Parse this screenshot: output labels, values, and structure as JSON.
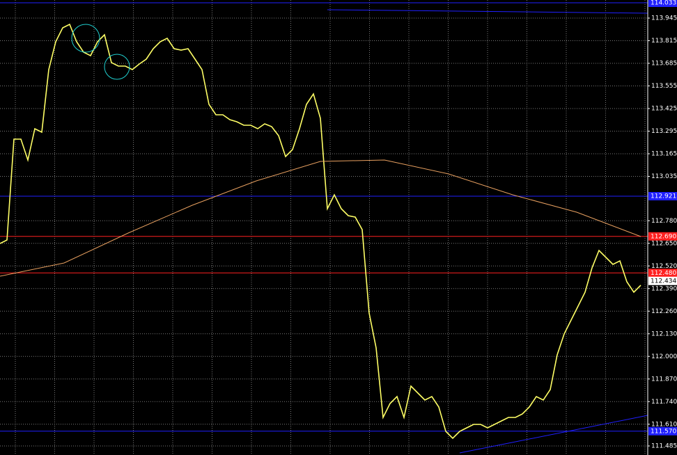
{
  "chart_data": {
    "type": "line",
    "series": [
      {
        "name": "Price",
        "color": "#ffff66",
        "values": [
          112.649,
          112.669,
          113.249,
          113.249,
          113.129,
          113.309,
          113.289,
          113.649,
          113.809,
          113.889,
          113.909,
          113.809,
          113.749,
          113.729,
          113.809,
          113.849,
          113.689,
          113.669,
          113.669,
          113.649,
          113.681,
          113.709,
          113.769,
          113.809,
          113.829,
          113.769,
          113.761,
          113.769,
          113.709,
          113.649,
          113.449,
          113.389,
          113.389,
          113.361,
          113.349,
          113.329,
          113.329,
          113.309,
          113.337,
          113.321,
          113.269,
          113.149,
          113.189,
          113.309,
          113.449,
          113.509,
          113.369,
          112.849,
          112.929,
          112.849,
          112.809,
          112.801,
          112.729,
          112.249,
          112.049,
          111.649,
          111.729,
          111.769,
          111.649,
          111.829,
          111.789,
          111.749,
          111.769,
          111.709,
          111.569,
          111.529,
          111.569,
          111.589,
          111.609,
          111.609,
          111.589,
          111.609,
          111.629,
          111.649,
          111.649,
          111.669,
          111.709,
          111.769,
          111.749,
          111.809,
          112.009,
          112.129,
          112.209,
          112.289,
          112.369,
          112.509,
          112.609,
          112.569,
          112.529,
          112.549,
          112.429,
          112.369,
          112.409
        ]
      },
      {
        "name": "MA",
        "color": "#e8a060",
        "values": [
          112.461,
          112.537,
          112.709,
          112.869,
          113.009,
          113.121,
          113.129,
          113.049,
          112.929,
          112.829,
          112.689
        ]
      }
    ],
    "levels": [
      {
        "value": 114.033,
        "label": "114.033",
        "color": "#2020ff"
      },
      {
        "value": 112.921,
        "label": "112.921",
        "color": "#2020ff"
      },
      {
        "value": 112.69,
        "label": "112.690",
        "color": "#ff2020"
      },
      {
        "value": 112.48,
        "label": "112.480",
        "color": "#ff2020"
      },
      {
        "value": 111.57,
        "label": "111.570",
        "color": "#2020ff"
      }
    ],
    "current_price": 112.434,
    "ylim": [
      111.433,
      114.049
    ],
    "yticks": [
      113.945,
      113.815,
      113.685,
      113.555,
      113.425,
      113.295,
      113.165,
      113.035,
      {
        "value": 112.78,
        "label": "112.780"
      },
      {
        "value": 112.65,
        "label": "112.650"
      },
      {
        "value": 112.52,
        "label": "112.520"
      },
      {
        "value": 112.39,
        "label": "112.390"
      },
      {
        "value": 112.26,
        "label": "112.260"
      },
      {
        "value": 112.13,
        "label": "112.130"
      },
      {
        "value": 112,
        "label": "112.000"
      },
      {
        "value": 111.87,
        "label": "111.870"
      },
      {
        "value": 111.74,
        "label": "111.740"
      },
      {
        "value": 111.61,
        "label": "111.610"
      },
      111.485
    ],
    "grid": true
  }
}
